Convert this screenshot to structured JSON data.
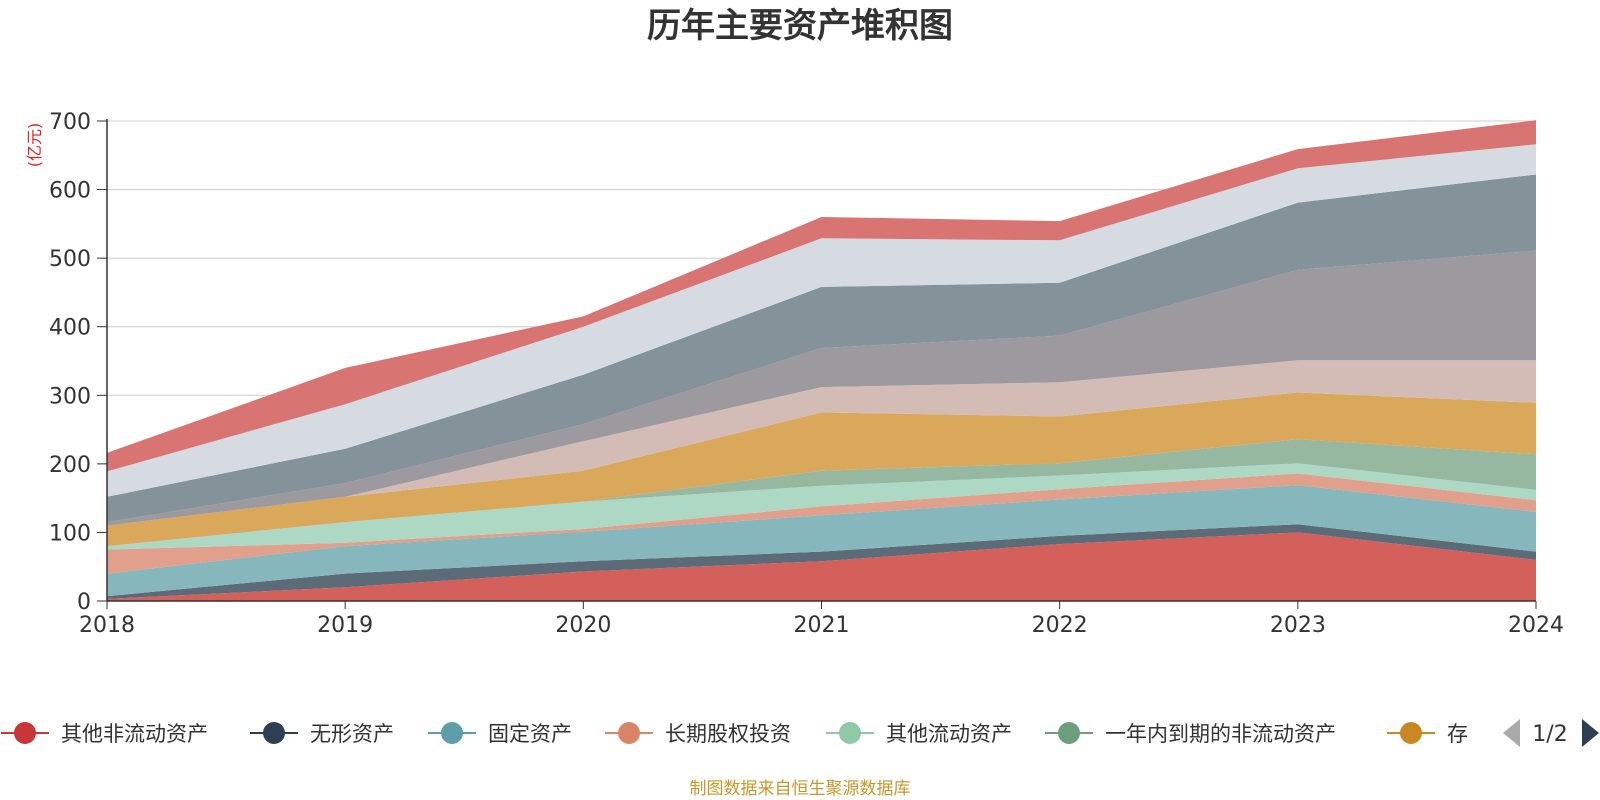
{
  "chart_data": {
    "type": "area",
    "stacked": true,
    "title": "历年主要资产堆积图",
    "unit_label": "(亿元)",
    "categories": [
      "2018",
      "2019",
      "2020",
      "2021",
      "2022",
      "2023",
      "2024"
    ],
    "ylim": [
      0,
      700
    ],
    "yticks": [
      "0",
      "100",
      "200",
      "300",
      "400",
      "500",
      "600",
      "700"
    ],
    "grid": true,
    "legend_position": "bottom",
    "series": [
      {
        "name": "其他非流动资产",
        "color": "#d4605c",
        "values": [
          3,
          20,
          43,
          58,
          83,
          100,
          60
        ],
        "in_legend": true
      },
      {
        "name": "无形资产",
        "color": "#5b6b78",
        "values": [
          4,
          20,
          15,
          14,
          12,
          12,
          12
        ],
        "in_legend": true
      },
      {
        "name": "固定资产",
        "color": "#86b7bd",
        "values": [
          33,
          40,
          43,
          53,
          53,
          57,
          58
        ],
        "in_legend": true
      },
      {
        "name": "长期股权投资",
        "color": "#e0a08c",
        "values": [
          35,
          5,
          4,
          13,
          15,
          17,
          17
        ],
        "in_legend": true
      },
      {
        "name": "其他流动资产",
        "color": "#acd8c4",
        "values": [
          5,
          30,
          40,
          30,
          20,
          15,
          15
        ],
        "in_legend": true
      },
      {
        "name": "一年内到期的非流动资产",
        "color": "#96b8a0",
        "values": [
          0,
          0,
          0,
          22,
          18,
          35,
          52
        ],
        "in_legend": true
      },
      {
        "name": "存",
        "color": "#d9a85a",
        "values": [
          30,
          37,
          45,
          85,
          68,
          68,
          75
        ],
        "in_legend": true
      },
      {
        "name": "",
        "color": "#d3bcb6",
        "values": [
          0,
          0,
          43,
          37,
          50,
          47,
          62
        ],
        "in_legend": false
      },
      {
        "name": "",
        "color": "#9c9a9e",
        "values": [
          5,
          20,
          25,
          57,
          68,
          132,
          160
        ],
        "in_legend": false
      },
      {
        "name": "",
        "color": "#84929a",
        "values": [
          37,
          50,
          72,
          89,
          77,
          98,
          111
        ],
        "in_legend": false
      },
      {
        "name": "",
        "color": "#d6dbe1",
        "values": [
          37,
          65,
          70,
          71,
          62,
          50,
          44
        ],
        "in_legend": false
      },
      {
        "name": "",
        "color": "#d87472",
        "values": [
          27,
          53,
          15,
          31,
          28,
          28,
          35
        ],
        "in_legend": false
      }
    ]
  },
  "legend": {
    "marker_colors": [
      "#c8363a",
      "#2d3f52",
      "#5e9ea8",
      "#d98568",
      "#8fc9a8",
      "#6e9f7c",
      "#c98824"
    ],
    "pager": "1/2",
    "pager_prev_icon": "triangle-left-icon",
    "pager_next_icon": "triangle-right-icon"
  },
  "source": "制图数据来自恒生聚源数据库"
}
